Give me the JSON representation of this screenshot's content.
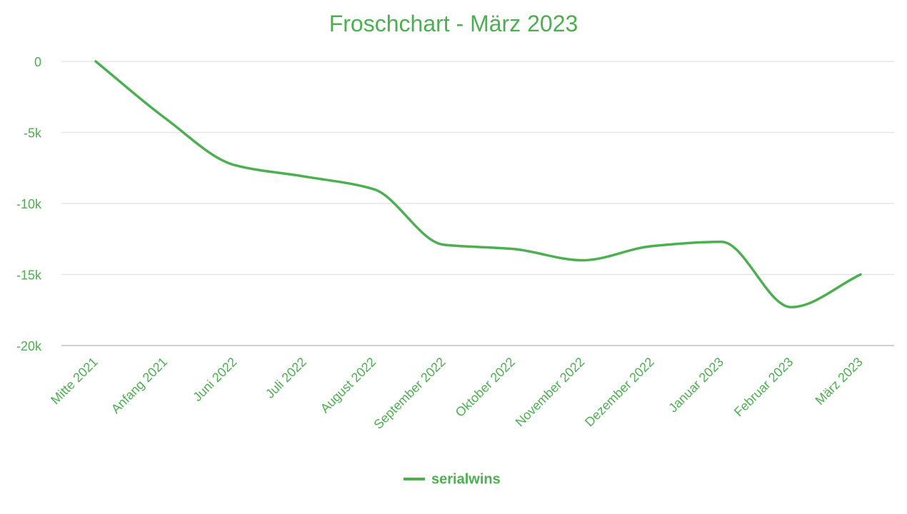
{
  "colors": {
    "series": "#4caf50",
    "text": "#4caf50",
    "grid": "#e3e5e8",
    "axis": "#ccd3db"
  },
  "chart_data": {
    "type": "line",
    "title": "Froschchart - März 2023",
    "xlabel": "",
    "ylabel": "",
    "categories": [
      "Mitte 2021",
      "Anfang 2021",
      "Juni 2022",
      "Juli 2022",
      "August 2022",
      "September 2022",
      "Oktober 2022",
      "November 2022",
      "Dezember 2022",
      "Januar 2023",
      "Februar 2023",
      "März 2023"
    ],
    "series": [
      {
        "name": "serialwins",
        "values": [
          0,
          -4000,
          -7300,
          -8100,
          -9000,
          -12900,
          -13200,
          -14000,
          -13000,
          -12700,
          -17300,
          -15000
        ]
      }
    ],
    "ylim": [
      -20000,
      0
    ],
    "y_ticks": [
      0,
      -5000,
      -10000,
      -15000,
      -20000
    ],
    "y_tick_labels": [
      "0",
      "-5k",
      "-10k",
      "-15k",
      "-20k"
    ],
    "grid": true,
    "smooth": true,
    "legend": "bottom-center"
  }
}
